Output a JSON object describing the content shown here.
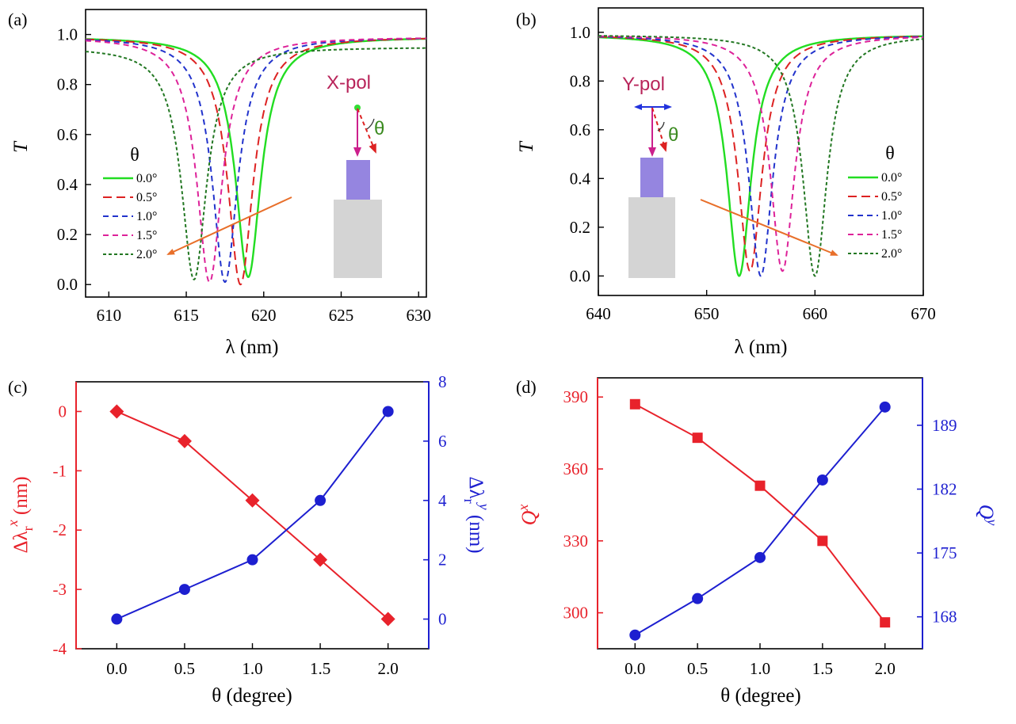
{
  "chart_data": [
    {
      "id": "a",
      "panel_label": "(a)",
      "type": "line",
      "xlabel": "λ (nm)",
      "ylabel": "T",
      "xlim": [
        608.5,
        630.5
      ],
      "ylim": [
        -0.05,
        1.1
      ],
      "xticks": [
        "610",
        "615",
        "620",
        "625",
        "630"
      ],
      "yticks": [
        "0.0",
        "0.2",
        "0.4",
        "0.6",
        "0.8",
        "1.0"
      ],
      "legend_title": "θ",
      "polarization_label": "X-pol",
      "angle_symbol": "θ",
      "series": [
        {
          "name": "0.0°",
          "color": "#22dd22",
          "dash": "solid",
          "center": 619.0,
          "min": 0.03,
          "base": 0.99
        },
        {
          "name": "0.5°",
          "color": "#dd2222",
          "dash": "long",
          "center": 618.5,
          "min": 0.0,
          "base": 0.99
        },
        {
          "name": "1.0°",
          "color": "#2233cc",
          "dash": "medium",
          "center": 617.5,
          "min": 0.01,
          "base": 0.99
        },
        {
          "name": "1.5°",
          "color": "#dd2299",
          "dash": "medium",
          "center": 616.5,
          "min": 0.01,
          "base": 0.99
        },
        {
          "name": "2.0°",
          "color": "#227722",
          "dash": "short",
          "center": 615.5,
          "min": 0.02,
          "base": 0.95
        }
      ]
    },
    {
      "id": "b",
      "panel_label": "(b)",
      "type": "line",
      "xlabel": "λ (nm)",
      "ylabel": "T",
      "xlim": [
        640,
        670
      ],
      "ylim": [
        -0.08,
        1.1
      ],
      "xticks": [
        "640",
        "650",
        "660",
        "670"
      ],
      "yticks": [
        "0.0",
        "0.2",
        "0.4",
        "0.6",
        "0.8",
        "1.0"
      ],
      "legend_title": "θ",
      "polarization_label": "Y-pol",
      "angle_symbol": "θ",
      "series": [
        {
          "name": "0.0°",
          "color": "#22dd22",
          "dash": "solid",
          "center": 653.0,
          "min": 0.0,
          "base": 0.99
        },
        {
          "name": "0.5°",
          "color": "#dd2222",
          "dash": "long",
          "center": 654.0,
          "min": 0.02,
          "base": 0.99
        },
        {
          "name": "1.0°",
          "color": "#2233cc",
          "dash": "medium",
          "center": 655.0,
          "min": 0.0,
          "base": 0.99
        },
        {
          "name": "1.5°",
          "color": "#dd2299",
          "dash": "medium",
          "center": 657.0,
          "min": 0.02,
          "base": 0.99
        },
        {
          "name": "2.0°",
          "color": "#227722",
          "dash": "short",
          "center": 660.0,
          "min": 0.0,
          "base": 0.99
        }
      ]
    },
    {
      "id": "c",
      "panel_label": "(c)",
      "type": "line",
      "xlabel": "θ (degree)",
      "ylabel_left": "Δλr^x (nm)",
      "ylabel_right": "Δλr^y (nm)",
      "xlim": [
        -0.3,
        2.3
      ],
      "ylim_left": [
        -4,
        0.5
      ],
      "ylim_right": [
        -1,
        8
      ],
      "xticks": [
        "0.0",
        "0.5",
        "1.0",
        "1.5",
        "2.0"
      ],
      "yticks_left": [
        "0",
        "-1",
        "-2",
        "-3",
        "-4"
      ],
      "yticks_right": [
        "0",
        "2",
        "4",
        "6",
        "8"
      ],
      "x": [
        0.0,
        0.5,
        1.0,
        1.5,
        2.0
      ],
      "series": [
        {
          "name": "Δλr^x",
          "axis": "left",
          "color": "#e8222b",
          "marker": "diamond",
          "values": [
            0.0,
            -0.5,
            -1.5,
            -2.5,
            -3.5
          ]
        },
        {
          "name": "Δλr^y",
          "axis": "right",
          "color": "#1d1fd0",
          "marker": "circle",
          "values": [
            0,
            1,
            2,
            4,
            7
          ]
        }
      ]
    },
    {
      "id": "d",
      "panel_label": "(d)",
      "type": "line",
      "xlabel": "θ (degree)",
      "ylabel_left": "Q^x",
      "ylabel_right": "Q^y",
      "xlim": [
        -0.3,
        2.3
      ],
      "ylim_left": [
        285,
        398
      ],
      "ylim_right": [
        164.5,
        194.2
      ],
      "xticks": [
        "0.0",
        "0.5",
        "1.0",
        "1.5",
        "2.0"
      ],
      "yticks_left": [
        "300",
        "330",
        "360",
        "390"
      ],
      "yticks_right": [
        "168",
        "175",
        "182",
        "189"
      ],
      "x": [
        0.0,
        0.5,
        1.0,
        1.5,
        2.0
      ],
      "series": [
        {
          "name": "Q^x",
          "axis": "left",
          "color": "#e8222b",
          "marker": "square",
          "values": [
            387,
            373,
            353,
            330,
            296
          ]
        },
        {
          "name": "Q^y",
          "axis": "right",
          "color": "#1d1fd0",
          "marker": "circle",
          "values": [
            166,
            170,
            174.5,
            183,
            191
          ]
        }
      ]
    }
  ]
}
